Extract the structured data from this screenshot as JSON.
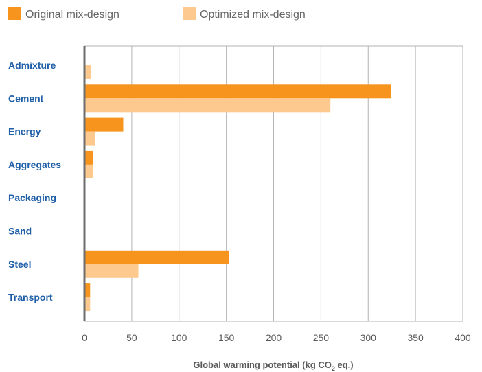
{
  "chart_data": {
    "type": "bar",
    "orientation": "horizontal",
    "categories": [
      "Admixture",
      "Cement",
      "Energy",
      "Aggregates",
      "Packaging",
      "Sand",
      "Steel",
      "Transport"
    ],
    "series": [
      {
        "name": "Original mix-design",
        "color": "#f7941d",
        "values": [
          0,
          324,
          41,
          9,
          0,
          0,
          153,
          6
        ]
      },
      {
        "name": "Optimized mix-design",
        "color": "#fdc98f",
        "values": [
          7,
          260,
          11,
          9,
          0,
          0,
          57,
          6
        ]
      }
    ],
    "xlim": [
      0,
      400
    ],
    "xticks": [
      0,
      50,
      100,
      150,
      200,
      250,
      300,
      350,
      400
    ],
    "xlabel": {
      "prefix": "Global warming potential (kg CO",
      "subscript": "2",
      "suffix": " eq.)"
    },
    "ylabel": "",
    "grid": "vertical",
    "legend_position": "top-left"
  }
}
